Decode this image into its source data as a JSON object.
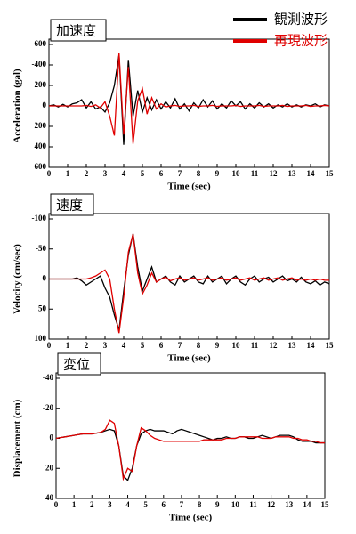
{
  "chart_data": [
    {
      "type": "line",
      "panel_label": "加速度",
      "ylabel": "Acceleration (gal)",
      "xlabel": "Time (sec)",
      "x": [
        0,
        0.25,
        0.5,
        0.75,
        1,
        1.25,
        1.5,
        1.75,
        2,
        2.25,
        2.5,
        2.75,
        3,
        3.25,
        3.5,
        3.75,
        4,
        4.25,
        4.5,
        4.75,
        5,
        5.25,
        5.5,
        5.75,
        6,
        6.25,
        6.5,
        6.75,
        7,
        7.25,
        7.5,
        7.75,
        8,
        8.25,
        8.5,
        8.75,
        9,
        9.25,
        9.5,
        9.75,
        10,
        10.25,
        10.5,
        10.75,
        11,
        11.25,
        11.5,
        11.75,
        12,
        12.25,
        12.5,
        12.75,
        13,
        13.25,
        13.5,
        13.75,
        14,
        14.25,
        14.5,
        14.75,
        15
      ],
      "xlim": [
        0,
        15
      ],
      "xticks": [
        0,
        1,
        2,
        3,
        4,
        5,
        6,
        7,
        8,
        9,
        10,
        11,
        12,
        13,
        14,
        15
      ],
      "ylim": [
        -600,
        600
      ],
      "y_inverted": true,
      "yticks": [
        -600,
        -400,
        -200,
        0,
        200,
        400,
        600
      ],
      "series": [
        {
          "name": "観測波形",
          "color": "#000000",
          "values": [
            0,
            -10,
            10,
            -15,
            10,
            -20,
            -30,
            -60,
            20,
            -40,
            30,
            10,
            60,
            -30,
            -200,
            -500,
            380,
            -450,
            100,
            -150,
            60,
            -80,
            40,
            -60,
            30,
            -40,
            20,
            -70,
            30,
            -20,
            50,
            -30,
            20,
            -60,
            10,
            -50,
            30,
            -20,
            20,
            -50,
            0,
            -40,
            30,
            -20,
            20,
            -30,
            10,
            -20,
            20,
            -10,
            10,
            -20,
            10,
            -10,
            10,
            -10,
            0,
            -20,
            10,
            -10,
            0
          ]
        },
        {
          "name": "再現波形",
          "color": "#e00000",
          "values": [
            0,
            0,
            0,
            0,
            0,
            0,
            0,
            0,
            -5,
            5,
            -10,
            20,
            -40,
            100,
            290,
            -520,
            280,
            -380,
            370,
            -50,
            -170,
            80,
            -80,
            30,
            -20,
            10,
            0,
            -5,
            5,
            0,
            0,
            -5,
            5,
            0,
            0,
            -5,
            5,
            0,
            0,
            0,
            -5,
            5,
            0,
            0,
            0,
            -5,
            5,
            0,
            0,
            0,
            -5,
            5,
            0,
            0,
            0,
            -5,
            5,
            0,
            0,
            -5,
            0
          ]
        }
      ]
    },
    {
      "type": "line",
      "panel_label": "速度",
      "ylabel": "Velocity (cm/sec)",
      "xlabel": "Time (sec)",
      "x": [
        0,
        0.25,
        0.5,
        0.75,
        1,
        1.25,
        1.5,
        1.75,
        2,
        2.25,
        2.5,
        2.75,
        3,
        3.25,
        3.5,
        3.75,
        4,
        4.25,
        4.5,
        4.75,
        5,
        5.25,
        5.5,
        5.75,
        6,
        6.25,
        6.5,
        6.75,
        7,
        7.25,
        7.5,
        7.75,
        8,
        8.25,
        8.5,
        8.75,
        9,
        9.25,
        9.5,
        9.75,
        10,
        10.25,
        10.5,
        10.75,
        11,
        11.25,
        11.5,
        11.75,
        12,
        12.25,
        12.5,
        12.75,
        13,
        13.25,
        13.5,
        13.75,
        14,
        14.25,
        14.5,
        14.75,
        15
      ],
      "xlim": [
        0,
        15
      ],
      "xticks": [
        0,
        1,
        2,
        3,
        4,
        5,
        6,
        7,
        8,
        9,
        10,
        11,
        12,
        13,
        14,
        15
      ],
      "ylim": [
        -100,
        100
      ],
      "y_inverted": true,
      "yticks": [
        -100,
        -50,
        0,
        50,
        100
      ],
      "series": [
        {
          "color": "#000000",
          "values": [
            0,
            0,
            0,
            0,
            0,
            0,
            -2,
            3,
            10,
            5,
            0,
            -5,
            15,
            30,
            60,
            85,
            20,
            -40,
            -75,
            -20,
            20,
            0,
            -20,
            5,
            0,
            -5,
            5,
            10,
            -5,
            5,
            0,
            -5,
            5,
            8,
            -5,
            5,
            0,
            -5,
            8,
            0,
            -5,
            5,
            10,
            0,
            -5,
            5,
            0,
            -3,
            5,
            0,
            -5,
            3,
            0,
            5,
            -3,
            5,
            8,
            3,
            10,
            5,
            8
          ]
        },
        {
          "color": "#e00000",
          "values": [
            0,
            0,
            0,
            0,
            0,
            0,
            0,
            0,
            0,
            -2,
            -5,
            -10,
            -15,
            0,
            50,
            90,
            30,
            -45,
            -75,
            -10,
            25,
            10,
            -10,
            5,
            0,
            -3,
            3,
            0,
            -2,
            2,
            0,
            -2,
            2,
            0,
            -2,
            2,
            0,
            -2,
            2,
            0,
            -2,
            2,
            0,
            -2,
            2,
            0,
            -2,
            2,
            0,
            -2,
            2,
            0,
            -2,
            2,
            0,
            2,
            0,
            2,
            0,
            2,
            2
          ]
        }
      ]
    },
    {
      "type": "line",
      "panel_label": "変位",
      "ylabel": "Displacement (cm)",
      "xlabel": "Time (sec)",
      "x": [
        0,
        0.25,
        0.5,
        0.75,
        1,
        1.25,
        1.5,
        1.75,
        2,
        2.25,
        2.5,
        2.75,
        3,
        3.25,
        3.5,
        3.75,
        4,
        4.25,
        4.5,
        4.75,
        5,
        5.25,
        5.5,
        5.75,
        6,
        6.25,
        6.5,
        6.75,
        7,
        7.25,
        7.5,
        7.75,
        8,
        8.25,
        8.5,
        8.75,
        9,
        9.25,
        9.5,
        9.75,
        10,
        10.25,
        10.5,
        10.75,
        11,
        11.25,
        11.5,
        11.75,
        12,
        12.25,
        12.5,
        12.75,
        13,
        13.25,
        13.5,
        13.75,
        14,
        14.25,
        14.5,
        14.75,
        15
      ],
      "xlim": [
        0,
        15
      ],
      "xticks": [
        0,
        1,
        2,
        3,
        4,
        5,
        6,
        7,
        8,
        9,
        10,
        11,
        12,
        13,
        14,
        15
      ],
      "ylim": [
        -40,
        40
      ],
      "y_inverted": true,
      "yticks": [
        -40,
        -20,
        0,
        20,
        40
      ],
      "series": [
        {
          "color": "#000000",
          "values": [
            0,
            -0.5,
            -1,
            -1.5,
            -2,
            -2.5,
            -3,
            -3,
            -3,
            -3.5,
            -4,
            -5,
            -6,
            -5,
            5,
            25,
            28,
            20,
            5,
            -3,
            -5,
            -6,
            -5,
            -5,
            -5,
            -4,
            -3,
            -5,
            -6,
            -5,
            -4,
            -3,
            -2,
            -1,
            0,
            1,
            0,
            0,
            -1,
            0,
            0,
            -1,
            -1,
            0,
            0,
            -1,
            -2,
            -1,
            0,
            -1,
            -2,
            -2,
            -2,
            -1,
            1,
            2,
            2,
            2,
            3,
            3,
            3
          ]
        },
        {
          "color": "#e00000",
          "values": [
            0,
            -0.5,
            -1,
            -1.5,
            -2,
            -2.5,
            -3,
            -3,
            -3,
            -3.5,
            -4,
            -6,
            -12,
            -10,
            5,
            27,
            20,
            22,
            5,
            -7,
            -5,
            -2,
            0,
            1,
            2,
            2,
            2,
            2,
            2,
            2,
            2,
            2,
            2,
            1,
            1,
            1,
            1,
            1,
            0,
            0,
            0,
            -1,
            -1,
            -1,
            -1,
            -1,
            0,
            0,
            0,
            -1,
            -1,
            -1,
            -1,
            0,
            0,
            1,
            1,
            2,
            2,
            3,
            3
          ]
        }
      ]
    }
  ]
}
